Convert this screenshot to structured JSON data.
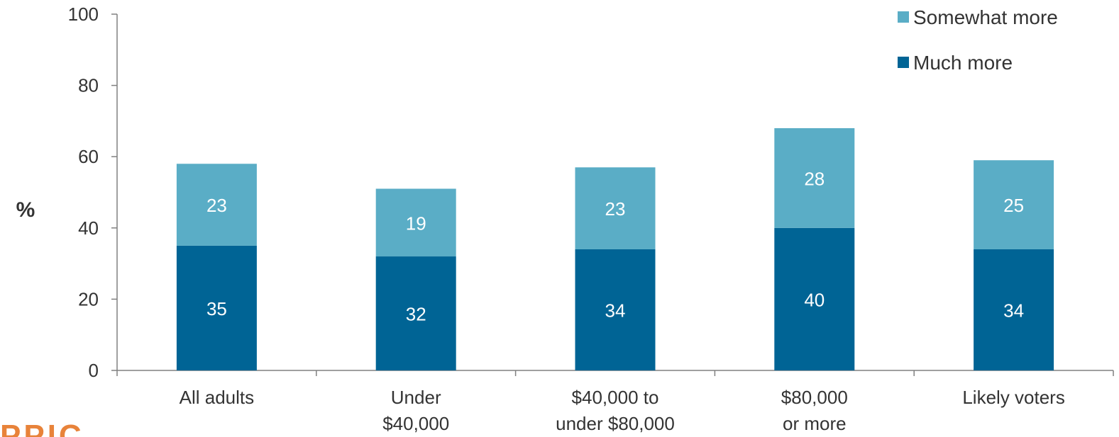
{
  "chart_data": {
    "type": "bar",
    "stacked": true,
    "categories": [
      [
        "All adults"
      ],
      [
        "Under",
        "$40,000"
      ],
      [
        "$40,000 to",
        "under $80,000"
      ],
      [
        "$80,000",
        "or more"
      ],
      [
        "Likely voters"
      ]
    ],
    "series": [
      {
        "name": "Much more",
        "color": "#006495",
        "values": [
          35,
          32,
          34,
          40,
          34
        ]
      },
      {
        "name": "Somewhat more",
        "color": "#5aadc6",
        "values": [
          23,
          19,
          23,
          28,
          25
        ]
      }
    ],
    "ylabel": "%",
    "ylim": [
      0,
      100
    ],
    "yticks": [
      0,
      20,
      40,
      60,
      80,
      100
    ],
    "grid": false,
    "legend": {
      "placement": "top-right",
      "order": [
        "Somewhat more",
        "Much more"
      ]
    }
  },
  "logo": {
    "text": "PPIC"
  }
}
